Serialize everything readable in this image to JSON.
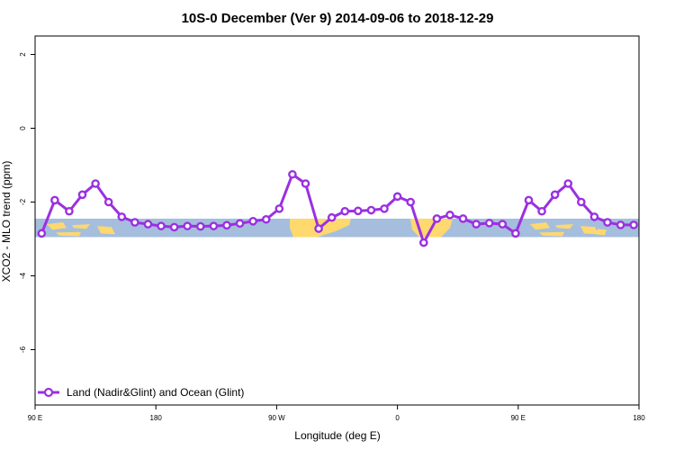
{
  "chart_data": {
    "type": "line",
    "title": "10S-0 December (Ver 9)   2014-09-06 to 2018-12-29",
    "xlabel": "Longitude (deg E)",
    "ylabel": "XCO2 - MLO trend (ppm)",
    "ylim": [
      -7.5,
      2.5
    ],
    "xlim": [
      0,
      46
    ],
    "y_ticks": [
      2,
      0,
      -2,
      -4,
      -6
    ],
    "y_tick_labels": [
      "2",
      "0",
      "-2",
      "-4",
      "-6"
    ],
    "x_tick_positions": [
      0,
      9.2,
      18.4,
      27.6,
      36.8,
      46
    ],
    "x_tick_labels": [
      "90 E",
      "180",
      "90 W",
      "0",
      "90 E",
      "180"
    ],
    "series": [
      {
        "name": "Land (Nadir&Glint) and Ocean (Glint)",
        "color": "#9b30e0",
        "x": [
          0.5,
          1.5,
          2.6,
          3.6,
          4.6,
          5.6,
          6.6,
          7.6,
          8.6,
          9.6,
          10.6,
          11.6,
          12.6,
          13.6,
          14.6,
          15.6,
          16.6,
          17.6,
          18.6,
          19.6,
          20.6,
          21.6,
          22.6,
          23.6,
          24.6,
          25.6,
          26.6,
          27.6,
          28.6,
          29.6,
          30.6,
          31.6,
          32.6,
          33.6,
          34.6,
          35.6,
          36.6,
          37.6,
          38.6,
          39.6,
          40.6,
          41.6,
          42.6,
          43.6,
          44.6,
          45.6
        ],
        "values": [
          -2.85,
          -1.95,
          -2.25,
          -1.8,
          -1.5,
          -2.0,
          -2.4,
          -2.55,
          -2.6,
          -2.65,
          -2.68,
          -2.65,
          -2.66,
          -2.65,
          -2.63,
          -2.58,
          -2.52,
          -2.47,
          -2.18,
          -1.25,
          -1.5,
          -2.72,
          -2.42,
          -2.25,
          -2.24,
          -2.22,
          -2.18,
          -1.85,
          -2.0,
          -3.1,
          -2.45,
          -2.35,
          -2.45,
          -2.6,
          -2.57,
          -2.6,
          -2.85,
          -1.95,
          -2.25,
          -1.8,
          -1.5,
          -2.0,
          -2.4,
          -2.55,
          -2.62,
          -2.62
        ]
      }
    ],
    "legend": "bottom-left",
    "band": {
      "y_min": -2.95,
      "y_max": -2.45,
      "ocean_color": "#a5bedd",
      "land_color": "#ffd86e"
    }
  }
}
